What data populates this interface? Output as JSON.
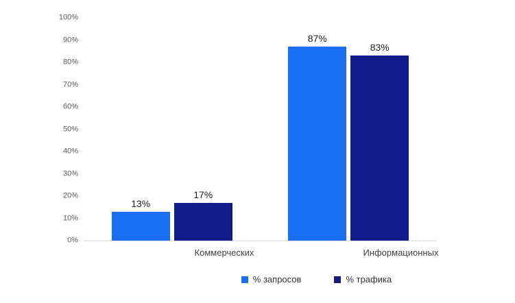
{
  "chart_data": {
    "type": "bar",
    "title": "",
    "xlabel": "",
    "ylabel": "",
    "categories": [
      "Коммерческих",
      "Информационных"
    ],
    "series": [
      {
        "name": "% запросов",
        "color": "#1a70f0",
        "values": [
          13,
          87
        ]
      },
      {
        "name": "% трафика",
        "color": "#141b8c",
        "values": [
          17,
          83
        ]
      }
    ],
    "data_labels": [
      [
        "13%",
        "87%"
      ],
      [
        "17%",
        "83%"
      ]
    ],
    "ylim": [
      0,
      100
    ],
    "ytick_step": 10,
    "ytick_labels": [
      "0%",
      "10%",
      "20%",
      "30%",
      "40%",
      "50%",
      "60%",
      "70%",
      "80%",
      "90%",
      "100%"
    ],
    "grid": "off",
    "legend_position": "bottom"
  }
}
